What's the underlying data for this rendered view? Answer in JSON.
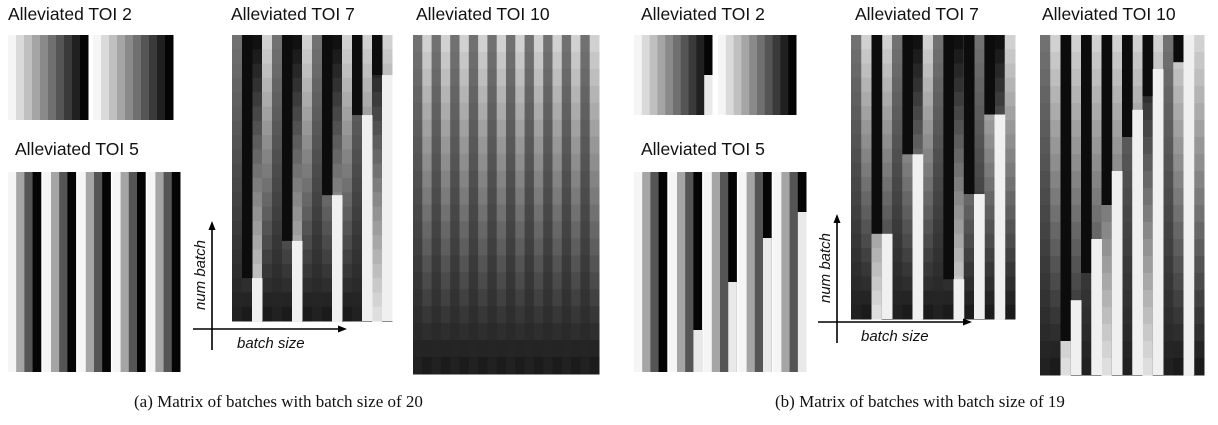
{
  "figure": {
    "panel_a": {
      "caption": "(a)  Matrix of batches with batch size of 20",
      "titles": {
        "toi2": "Alleviated TOI 2",
        "toi5": "Alleviated TOI 5",
        "toi7": "Alleviated TOI 7",
        "toi10": "Alleviated TOI 10"
      },
      "axis": {
        "y_label": "num batch",
        "x_label": "batch size"
      }
    },
    "panel_b": {
      "caption": "(b)  Matrix of batches with batch size of 19",
      "titles": {
        "toi2": "Alleviated TOI 2",
        "toi5": "Alleviated TOI 5",
        "toi7": "Alleviated TOI 7",
        "toi10": "Alleviated TOI 10"
      },
      "axis": {
        "y_label": "num batch",
        "x_label": "batch size"
      }
    }
  },
  "colors": {
    "axis": "#000000",
    "background": "#ffffff"
  }
}
